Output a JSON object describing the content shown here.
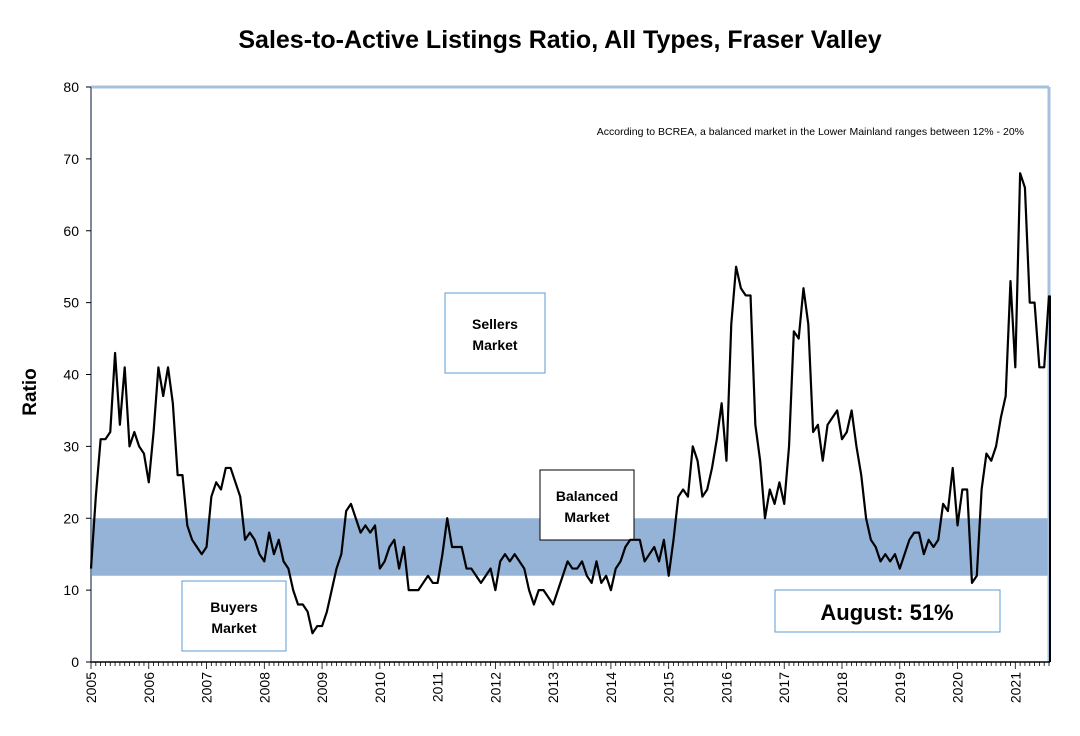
{
  "chart_data": {
    "type": "line",
    "title": "Sales-to-Active Listings Ratio, All Types, Fraser Valley",
    "ylabel": "Ratio",
    "xlabel": "",
    "ylim": [
      0,
      80
    ],
    "yticks": [
      0,
      10,
      20,
      30,
      40,
      50,
      60,
      70,
      80
    ],
    "x_start": "2005-01",
    "x_end": "2021-08",
    "xtick_labels": [
      "2005",
      "2006",
      "2007",
      "2008",
      "2009",
      "2010",
      "2011",
      "2012",
      "2013",
      "2014",
      "2015",
      "2016",
      "2017",
      "2018",
      "2019",
      "2020",
      "2021"
    ],
    "balanced_band": [
      12,
      20
    ],
    "annotation": "According to BCREA, a balanced market in the Lower Mainland ranges between 12% - 20%",
    "region_labels": {
      "sellers": [
        "Sellers",
        "Market"
      ],
      "balanced": [
        "Balanced",
        "Market"
      ],
      "buyers": [
        "Buyers",
        "Market"
      ]
    },
    "callout": "August: 51%",
    "colors": {
      "band": "#94b3d7",
      "line": "#000000",
      "frame": "#a6c0dd",
      "box_border": "#5b9bd5"
    },
    "series": [
      {
        "values": [
          13,
          23,
          31,
          31,
          32,
          43,
          33,
          41,
          30,
          32,
          30,
          29,
          25,
          32,
          41,
          37,
          41,
          36,
          26,
          26,
          19,
          17,
          16,
          15,
          16,
          23,
          25,
          24,
          27,
          27,
          25,
          23,
          17,
          18,
          17,
          15,
          14,
          18,
          15,
          17,
          14,
          13,
          10,
          8,
          8,
          7,
          4,
          5,
          5,
          7,
          10,
          13,
          15,
          21,
          22,
          20,
          18,
          19,
          18,
          19,
          13,
          14,
          16,
          17,
          13,
          16,
          10,
          10,
          10,
          11,
          12,
          11,
          11,
          15,
          20,
          16,
          16,
          16,
          13,
          13,
          12,
          11,
          12,
          13,
          10,
          14,
          15,
          14,
          15,
          14,
          13,
          10,
          8,
          10,
          10,
          9,
          8,
          10,
          12,
          14,
          13,
          13,
          14,
          12,
          11,
          14,
          11,
          12,
          10,
          13,
          14,
          16,
          17,
          17,
          17,
          14,
          15,
          16,
          14,
          17,
          12,
          17,
          23,
          24,
          23,
          30,
          28,
          23,
          24,
          27,
          31,
          36,
          28,
          47,
          55,
          52,
          51,
          51,
          33,
          28,
          20,
          24,
          22,
          25,
          22,
          30,
          46,
          45,
          52,
          47,
          32,
          33,
          28,
          33,
          34,
          35,
          31,
          32,
          35,
          30,
          26,
          20,
          17,
          16,
          14,
          15,
          14,
          15,
          13,
          15,
          17,
          18,
          18,
          15,
          17,
          16,
          17,
          22,
          21,
          27,
          19,
          24,
          24,
          11,
          12,
          24,
          29,
          28,
          30,
          34,
          37,
          53,
          41,
          68,
          66,
          50,
          50,
          41,
          41,
          51
        ]
      }
    ]
  }
}
